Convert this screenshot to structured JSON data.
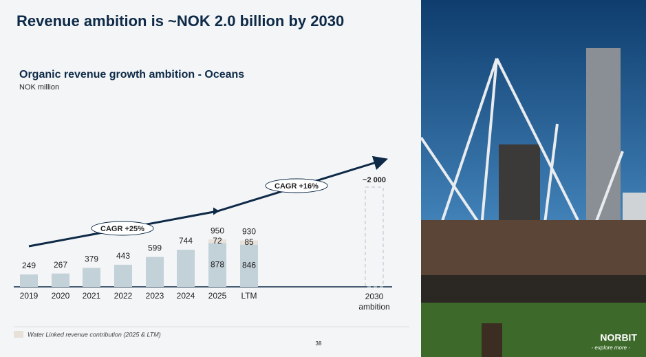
{
  "title": "Revenue ambition is ~NOK 2.0 billion by 2030",
  "chart_data": {
    "type": "bar",
    "title": "Organic revenue growth ambition - Oceans",
    "subtitle": "NOK million",
    "categories": [
      "2019",
      "2020",
      "2021",
      "2022",
      "2023",
      "2024",
      "2025",
      "LTM",
      "2030 ambition"
    ],
    "series": [
      {
        "color": "#c3d1d8",
        "values": [
          249,
          267,
          379,
          443,
          599,
          744,
          878,
          846,
          null
        ]
      },
      {
        "name": "Water Linked revenue contribution (2025 & LTM)",
        "color": "#e7e1d9",
        "values": [
          null,
          null,
          null,
          null,
          null,
          null,
          72,
          85,
          null
        ]
      }
    ],
    "totals": [
      null,
      null,
      null,
      null,
      null,
      null,
      950,
      930,
      null
    ],
    "target": {
      "value": 2000,
      "label": "~2 000"
    },
    "annotations": [
      "CAGR +25%",
      "CAGR +16%"
    ]
  },
  "page_number": "38",
  "logo": {
    "name": "NORBIT",
    "tagline": "- explore more -"
  }
}
